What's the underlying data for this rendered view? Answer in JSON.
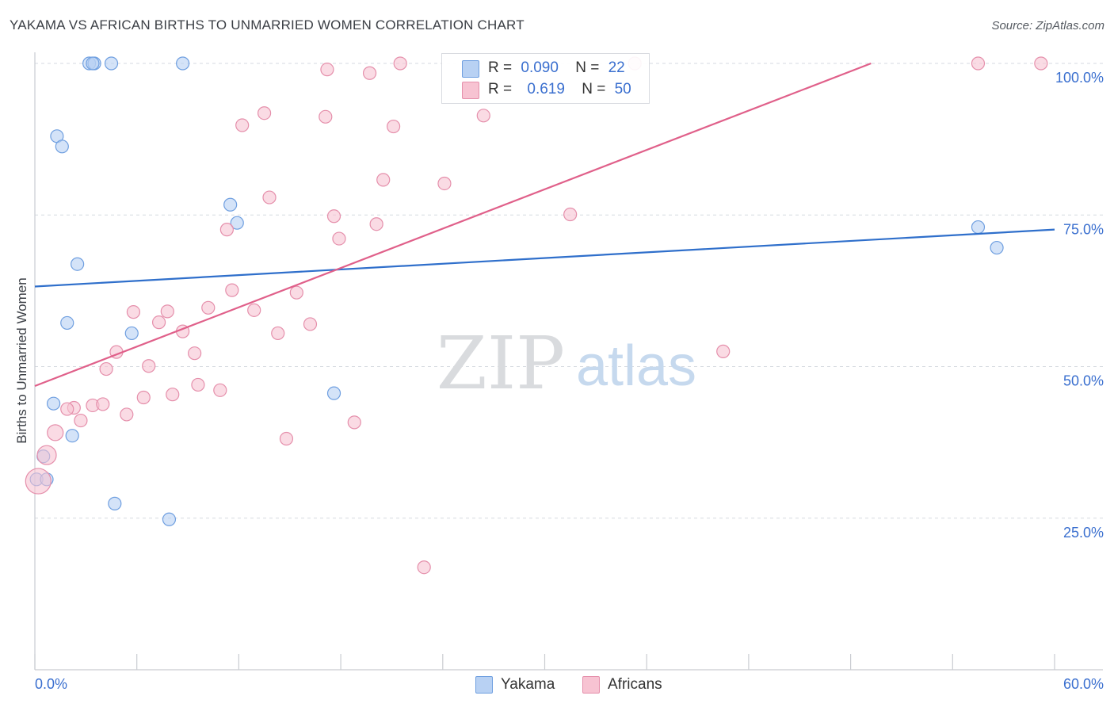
{
  "title": "YAKAMA VS AFRICAN BIRTHS TO UNMARRIED WOMEN CORRELATION CHART",
  "source": "Source: ZipAtlas.com",
  "watermark": {
    "zip": "ZIP",
    "atlas": "atlas"
  },
  "colors": {
    "yakama_fill": "#b8d1f3",
    "yakama_stroke": "#6f9fe0",
    "yakama_line": "#2f6fcb",
    "africans_fill": "#f7c3d2",
    "africans_stroke": "#e58fab",
    "africans_line": "#e0608a",
    "grid": "#d6dae0",
    "axis_label": "#3a6fcf"
  },
  "legend": {
    "r_label": "R =",
    "n_label": "N =",
    "yakama": {
      "r": "0.090",
      "n": "22"
    },
    "africans": {
      "r": "0.619",
      "n": "50"
    }
  },
  "bottom_legend": {
    "yakama": "Yakama",
    "africans": "Africans"
  },
  "chart_data": {
    "type": "scatter",
    "title": "YAKAMA VS AFRICAN BIRTHS TO UNMARRIED WOMEN CORRELATION CHART",
    "xlabel": "",
    "ylabel": "Births to Unmarried Women",
    "xlim": [
      0,
      60
    ],
    "ylim": [
      0,
      100
    ],
    "x_tick_labels": [
      "0.0%",
      "60.0%"
    ],
    "y_ticks": [
      25,
      50,
      75,
      100
    ],
    "y_tick_labels": [
      "25.0%",
      "50.0%",
      "75.0%",
      "100.0%"
    ],
    "series": [
      {
        "name": "Yakama",
        "points": [
          {
            "x": 3.2,
            "y": 100
          },
          {
            "x": 3.5,
            "y": 100
          },
          {
            "x": 3.4,
            "y": 100
          },
          {
            "x": 4.5,
            "y": 100
          },
          {
            "x": 8.7,
            "y": 100
          },
          {
            "x": 1.3,
            "y": 88
          },
          {
            "x": 1.6,
            "y": 86.3
          },
          {
            "x": 11.5,
            "y": 76.7
          },
          {
            "x": 11.9,
            "y": 73.7
          },
          {
            "x": 2.5,
            "y": 66.9
          },
          {
            "x": 1.9,
            "y": 57.2
          },
          {
            "x": 5.7,
            "y": 55.5
          },
          {
            "x": 1.1,
            "y": 43.9
          },
          {
            "x": 17.6,
            "y": 45.6
          },
          {
            "x": 2.2,
            "y": 38.6
          },
          {
            "x": 0.5,
            "y": 35.2
          },
          {
            "x": 0.1,
            "y": 31.4
          },
          {
            "x": 0.7,
            "y": 31.4
          },
          {
            "x": 4.7,
            "y": 27.4
          },
          {
            "x": 7.9,
            "y": 24.8
          },
          {
            "x": 55.5,
            "y": 73
          },
          {
            "x": 56.6,
            "y": 69.6
          }
        ],
        "trend": {
          "x0": 0,
          "y0": 63.2,
          "x1": 60,
          "y1": 72.6
        }
      },
      {
        "name": "Africans",
        "points": [
          {
            "x": 17.2,
            "y": 99
          },
          {
            "x": 21.5,
            "y": 100
          },
          {
            "x": 35.3,
            "y": 100
          },
          {
            "x": 55.5,
            "y": 100
          },
          {
            "x": 59.2,
            "y": 100
          },
          {
            "x": 19.7,
            "y": 98.4
          },
          {
            "x": 13.5,
            "y": 91.8
          },
          {
            "x": 12.2,
            "y": 89.8
          },
          {
            "x": 17.1,
            "y": 91.2
          },
          {
            "x": 21.1,
            "y": 89.6
          },
          {
            "x": 26.4,
            "y": 91.4
          },
          {
            "x": 20.5,
            "y": 80.8
          },
          {
            "x": 24.1,
            "y": 80.2
          },
          {
            "x": 13.8,
            "y": 77.9
          },
          {
            "x": 17.6,
            "y": 74.8
          },
          {
            "x": 20.1,
            "y": 73.5
          },
          {
            "x": 31.5,
            "y": 75.1
          },
          {
            "x": 11.3,
            "y": 72.6
          },
          {
            "x": 17.9,
            "y": 71.1
          },
          {
            "x": 11.6,
            "y": 62.6
          },
          {
            "x": 15.4,
            "y": 62.2
          },
          {
            "x": 5.8,
            "y": 59
          },
          {
            "x": 7.8,
            "y": 59.1
          },
          {
            "x": 10.2,
            "y": 59.7
          },
          {
            "x": 12.9,
            "y": 59.3
          },
          {
            "x": 7.3,
            "y": 57.3
          },
          {
            "x": 16.2,
            "y": 57
          },
          {
            "x": 8.7,
            "y": 55.8
          },
          {
            "x": 14.3,
            "y": 55.5
          },
          {
            "x": 4.8,
            "y": 52.4
          },
          {
            "x": 9.4,
            "y": 52.2
          },
          {
            "x": 40.5,
            "y": 52.5
          },
          {
            "x": 6.7,
            "y": 50.1
          },
          {
            "x": 4.2,
            "y": 49.6
          },
          {
            "x": 9.6,
            "y": 47
          },
          {
            "x": 10.9,
            "y": 46.1
          },
          {
            "x": 8.1,
            "y": 45.4
          },
          {
            "x": 6.4,
            "y": 44.9
          },
          {
            "x": 3.4,
            "y": 43.6
          },
          {
            "x": 2.3,
            "y": 43.2
          },
          {
            "x": 1.9,
            "y": 43
          },
          {
            "x": 5.4,
            "y": 42.1
          },
          {
            "x": 2.7,
            "y": 41.1
          },
          {
            "x": 18.8,
            "y": 40.8
          },
          {
            "x": 1.2,
            "y": 39.1
          },
          {
            "x": 14.8,
            "y": 38.1
          },
          {
            "x": 0.7,
            "y": 35.4
          },
          {
            "x": 0.2,
            "y": 31.1
          },
          {
            "x": 22.9,
            "y": 16.9
          },
          {
            "x": 4,
            "y": 43.8
          }
        ],
        "trend": {
          "x0": 0,
          "y0": 46.8,
          "x1": 49.2,
          "y1": 100
        }
      }
    ]
  }
}
